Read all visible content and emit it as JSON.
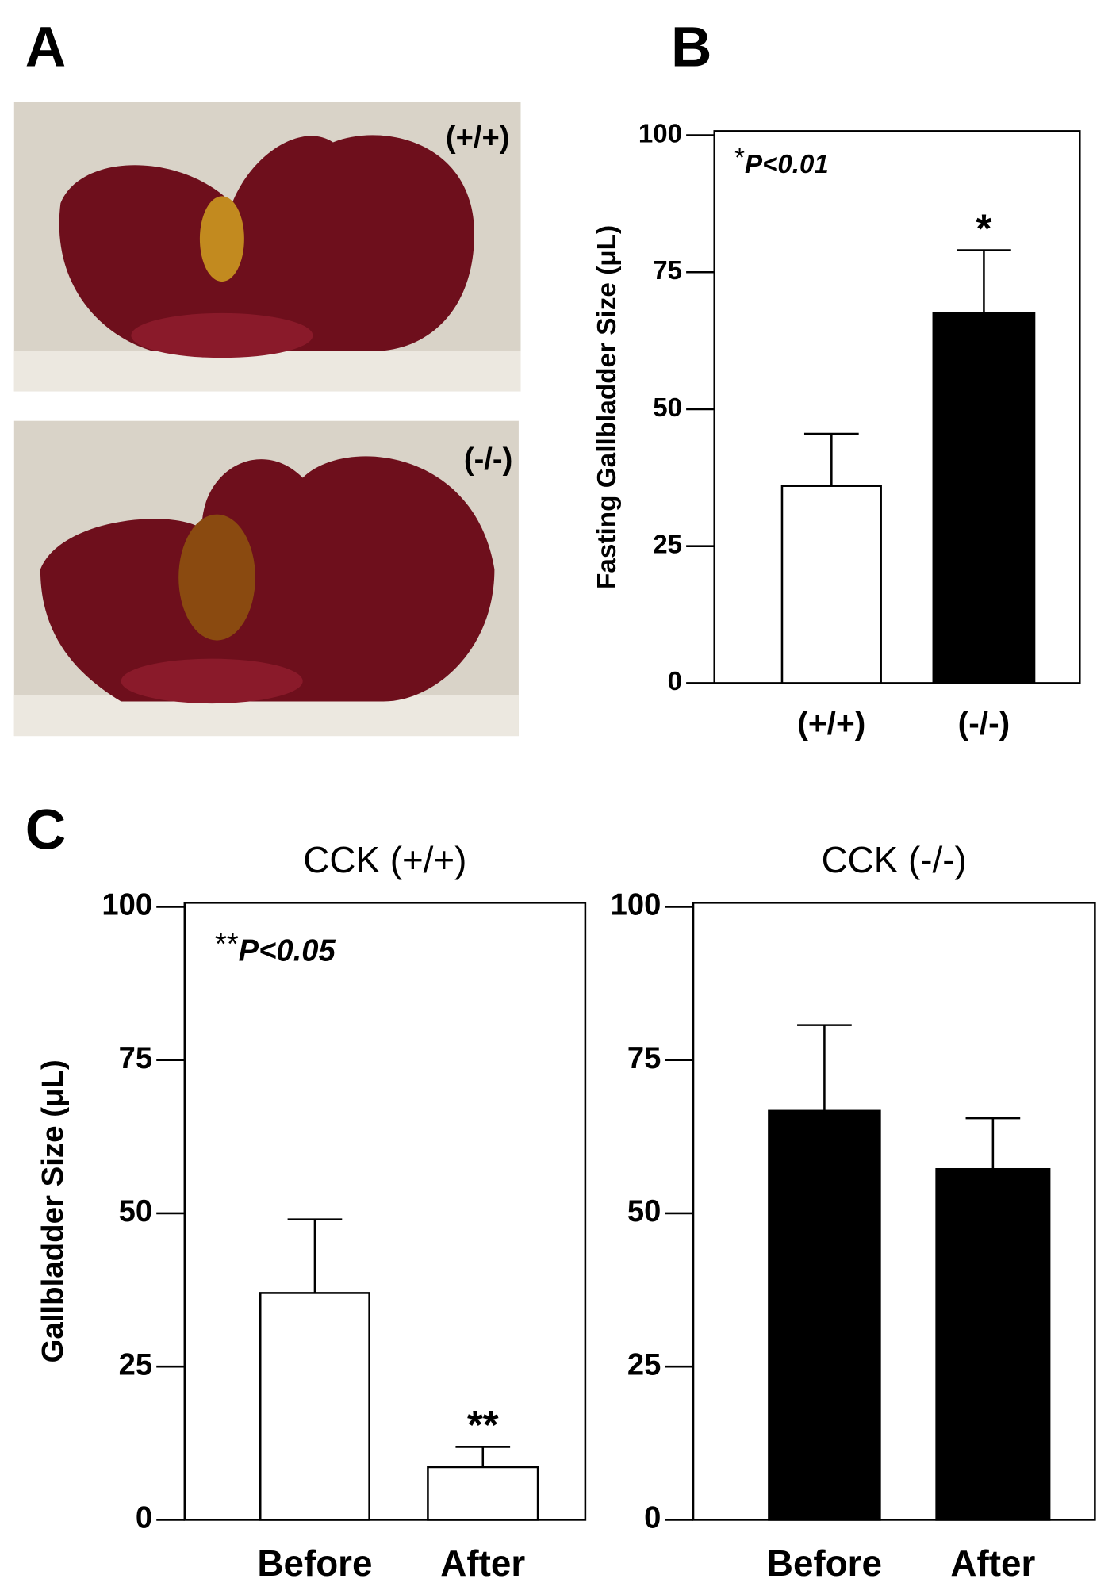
{
  "panel_labels": [
    "A",
    "B",
    "C"
  ],
  "photo_labels": [
    "(+/+)",
    "(-/-)"
  ],
  "chart_data": [
    {
      "type": "bar",
      "ylabel": "Fasting Gallbladder Size (μL)",
      "categories": [
        "(+/+)",
        "(-/-)"
      ],
      "values": [
        36,
        67.5
      ],
      "errors": [
        9.5,
        11.5
      ],
      "colors": [
        "#ffffff",
        "#000000"
      ],
      "markers": [
        null,
        "*"
      ],
      "note_symbol": "*",
      "note": "P<0.01",
      "ylim": [
        0,
        100
      ],
      "yticks": [
        0,
        25,
        50,
        75,
        100
      ]
    },
    {
      "type": "bar",
      "title": "CCK (+/+)",
      "ylabel": "Gallbladder Size (μL)",
      "categories": [
        "Before",
        "After"
      ],
      "values": [
        37,
        8.6
      ],
      "errors": [
        12,
        3.3
      ],
      "colors": [
        "#ffffff",
        "#ffffff"
      ],
      "markers": [
        null,
        "**"
      ],
      "note_symbol": "**",
      "note": "P<0.05",
      "ylim": [
        0,
        100
      ],
      "yticks": [
        0,
        25,
        50,
        75,
        100
      ]
    },
    {
      "type": "bar",
      "title": "CCK (-/-)",
      "categories": [
        "Before",
        "After"
      ],
      "values": [
        66.7,
        57.2
      ],
      "errors": [
        14,
        8.3
      ],
      "colors": [
        "#000000",
        "#000000"
      ],
      "ylim": [
        0,
        100
      ],
      "yticks": [
        0,
        25,
        50,
        75,
        100
      ]
    }
  ]
}
